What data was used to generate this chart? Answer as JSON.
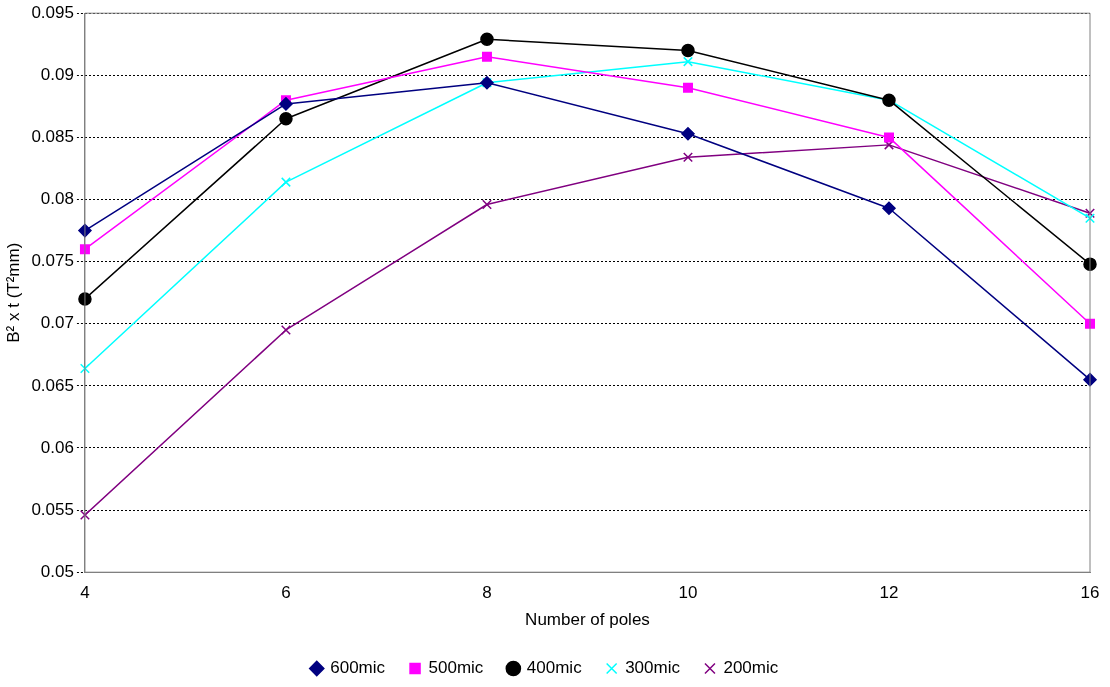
{
  "chart_data": {
    "type": "line",
    "xlabel": "Number of poles",
    "ylabel": "B² x t (T²mm)",
    "categories": [
      "4",
      "6",
      "8",
      "10",
      "12",
      "16"
    ],
    "series": [
      {
        "name": "600mic",
        "color": "#000080",
        "marker": "diamond",
        "values": [
          0.0775,
          0.0877,
          0.0894,
          0.0853,
          0.0793,
          0.0655
        ]
      },
      {
        "name": "500mic",
        "color": "#ff00ff",
        "marker": "square",
        "values": [
          0.076,
          0.088,
          0.0915,
          0.089,
          0.085,
          0.07
        ]
      },
      {
        "name": "400mic",
        "color": "#000000",
        "marker": "circle",
        "values": [
          0.072,
          0.0865,
          0.0929,
          0.092,
          0.088,
          0.0748
        ]
      },
      {
        "name": "300mic",
        "color": "#00ffff",
        "marker": "cross",
        "values": [
          0.0664,
          0.0814,
          0.0894,
          0.0911,
          0.088,
          0.0785
        ]
      },
      {
        "name": "200mic",
        "color": "#800080",
        "marker": "cross",
        "values": [
          0.0546,
          0.0695,
          0.0796,
          0.0834,
          0.0844,
          0.0789
        ]
      }
    ],
    "ylim": [
      0.05,
      0.095
    ],
    "yticks": [
      0.05,
      0.055,
      0.06,
      0.065,
      0.07,
      0.075,
      0.08,
      0.085,
      0.09,
      0.095
    ],
    "grid": "y",
    "legend": "bottom"
  }
}
